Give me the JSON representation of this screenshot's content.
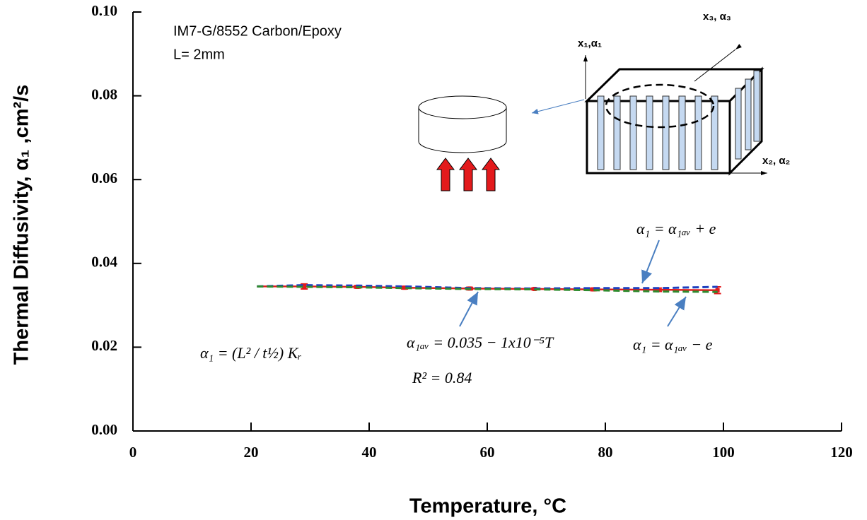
{
  "chart_data": {
    "type": "line",
    "x_label": "Temperature, °C",
    "y_label": "Thermal Diffusivity, α₁ ,cm²/s",
    "x": [
      21,
      29,
      38,
      46,
      57,
      68,
      78,
      89,
      99
    ],
    "series": [
      {
        "color": "#e31a1c",
        "dash": false,
        "marker": true,
        "values": [
          0.0345,
          0.0345,
          0.0344,
          0.0342,
          0.034,
          0.0339,
          0.0338,
          0.0337,
          0.0336
        ],
        "errors": [
          null,
          0.0006,
          0.0003,
          0.0003,
          0.0003,
          0.0002,
          0.0003,
          0.0004,
          0.0008
        ]
      },
      {
        "color": "#1f3fbf",
        "dash": true,
        "marker": false,
        "values": [
          0.0345,
          0.0348,
          0.0347,
          0.0345,
          0.0341,
          0.034,
          0.0341,
          0.0341,
          0.0344
        ]
      },
      {
        "color": "#2e8b2e",
        "dash": true,
        "marker": false,
        "values": [
          0.0345,
          0.0344,
          0.0343,
          0.0341,
          0.0339,
          0.0338,
          0.0336,
          0.0333,
          0.0332
        ]
      }
    ],
    "xlim": [
      0,
      120
    ],
    "xticks": [
      0,
      20,
      40,
      60,
      80,
      100,
      120
    ],
    "ylim": [
      0,
      0.1
    ],
    "yticks": [
      {
        "value": 0,
        "label": "0.00"
      },
      {
        "value": 0.02,
        "label": "0.02"
      },
      {
        "value": 0.04,
        "label": "0.04"
      },
      {
        "value": 0.06,
        "label": "0.06"
      },
      {
        "value": 0.08,
        "label": "0.08"
      },
      {
        "value": 0.1,
        "label": "0.10"
      }
    ],
    "grid": false,
    "annotations": [
      "IM7-G/8552 Carbon/Epoxy",
      "L= 2mm",
      "α₁ = α₁ₐᵥ + e",
      "α₁ₐᵥ = 0.035 − 1x10⁻⁵T",
      "R² = 0.84",
      "α₁ = α₁ₐᵥ − e",
      "α₁ = (L² / t½) Kᵣ",
      "x₁,α₁",
      "x₂, α₂",
      "x₃, α₃"
    ]
  }
}
